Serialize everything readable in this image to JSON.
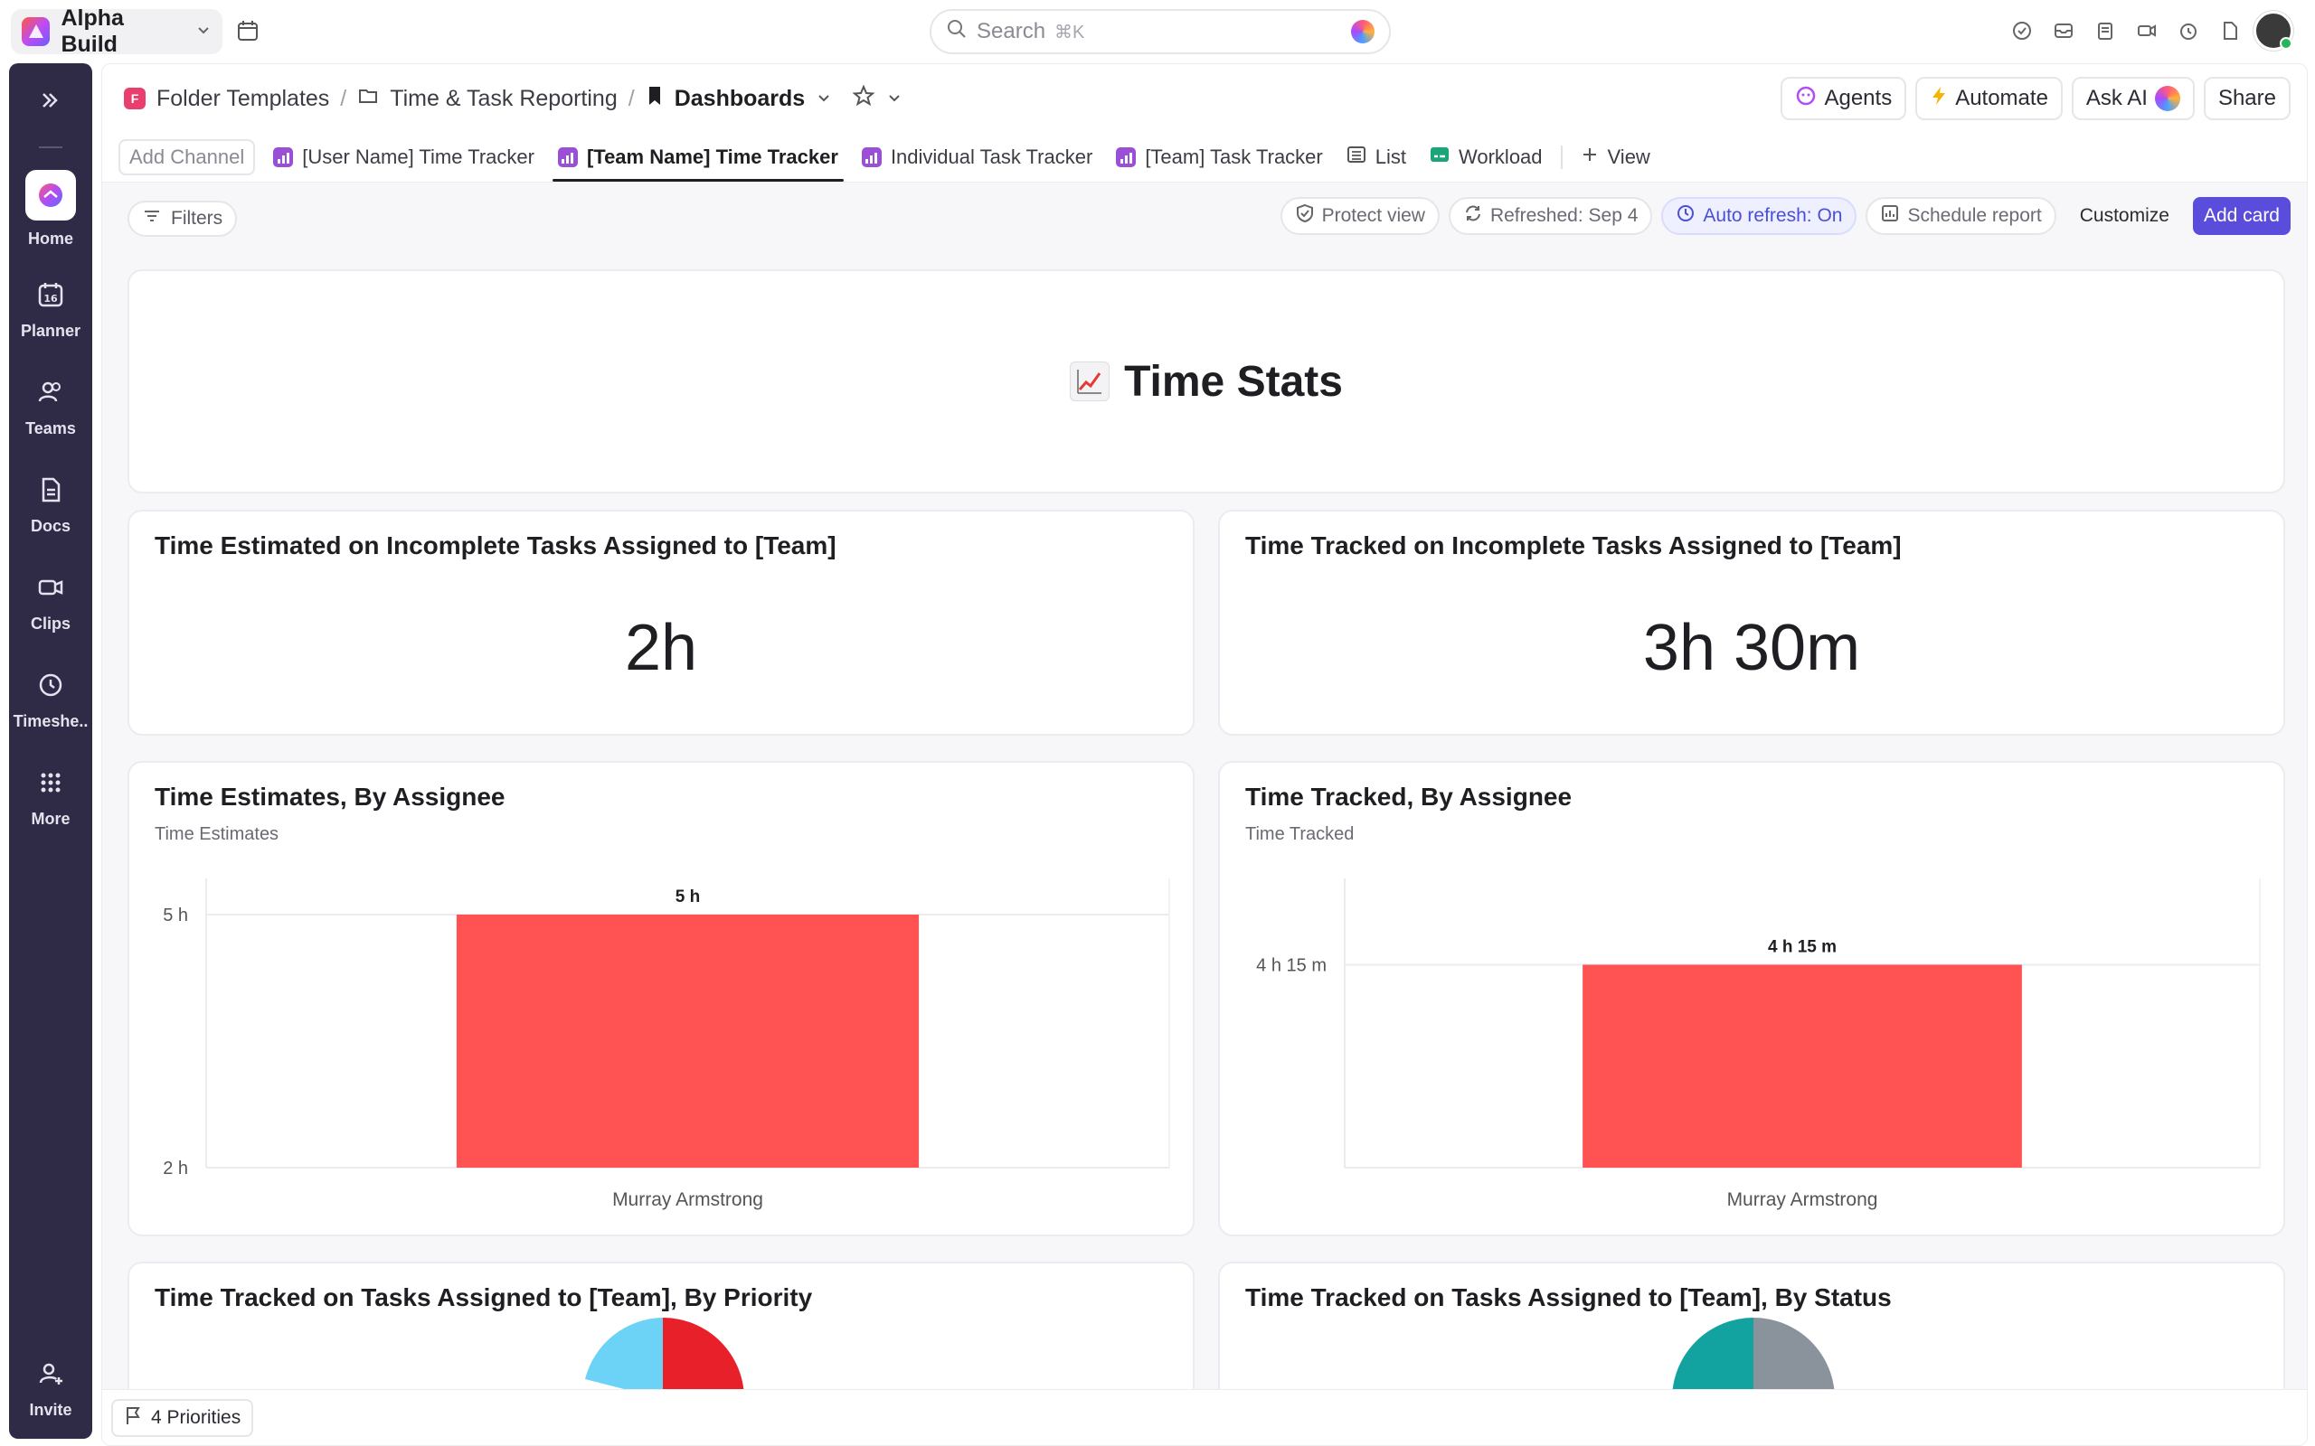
{
  "workspace": {
    "name": "Alpha Build"
  },
  "search": {
    "label": "Search",
    "shortcut": "⌘K"
  },
  "sidebar": {
    "items": [
      {
        "label": "Home",
        "icon": "home-icon"
      },
      {
        "label": "Planner",
        "icon": "calendar-16-icon"
      },
      {
        "label": "Teams",
        "icon": "teams-icon"
      },
      {
        "label": "Docs",
        "icon": "docs-icon"
      },
      {
        "label": "Clips",
        "icon": "video-icon"
      },
      {
        "label": "Timeshe..",
        "icon": "clock-icon"
      },
      {
        "label": "More",
        "icon": "grid-dots-icon"
      }
    ],
    "invite_label": "Invite"
  },
  "breadcrumb": {
    "folder": "Folder Templates",
    "list": "Time & Task Reporting",
    "current": "Dashboards"
  },
  "header_buttons": {
    "agents": "Agents",
    "automate": "Automate",
    "ask_ai": "Ask AI",
    "share": "Share"
  },
  "tabs": {
    "add_channel": "Add Channel",
    "items": [
      {
        "label": "[User Name] Time Tracker"
      },
      {
        "label": "[Team Name] Time Tracker",
        "active": true
      },
      {
        "label": "Individual Task Tracker"
      },
      {
        "label": "[Team] Task Tracker"
      },
      {
        "label": "List"
      },
      {
        "label": "Workload"
      }
    ],
    "add_view": "View"
  },
  "toolbar": {
    "filters": "Filters",
    "protect_view": "Protect view",
    "refreshed": "Refreshed: Sep 4",
    "auto_refresh": "Auto refresh: On",
    "schedule_report": "Schedule report",
    "customize": "Customize",
    "add_card": "Add card"
  },
  "dashboard": {
    "hero_title": "Time Stats",
    "estimated_card": {
      "title": "Time Estimated on Incomplete Tasks Assigned to [Team]",
      "value": "2h"
    },
    "tracked_card": {
      "title": "Time Tracked on Incomplete Tasks Assigned to [Team]",
      "value": "3h 30m"
    },
    "priority_card": {
      "title": "Time Tracked on Tasks Assigned to [Team], By Priority"
    },
    "status_card": {
      "title": "Time Tracked on Tasks Assigned to [Team], By Status"
    }
  },
  "chart_data": [
    {
      "type": "bar",
      "title": "Time Estimates, By Assignee",
      "subtitle": "Time Estimates",
      "categories": [
        "Murray Armstrong"
      ],
      "values": [
        5
      ],
      "data_labels": [
        "5 h"
      ],
      "yticks": [
        "2 h",
        "5 h"
      ],
      "ylim": [
        2,
        5
      ],
      "bar_color": "#ff5252",
      "grid": true
    },
    {
      "type": "bar",
      "title": "Time Tracked, By Assignee",
      "subtitle": "Time Tracked",
      "categories": [
        "Murray Armstrong"
      ],
      "values": [
        4.25
      ],
      "data_labels": [
        "4 h 15 m"
      ],
      "yticks": [
        "4 h 15 m"
      ],
      "bar_color": "#ff5252",
      "grid": true
    }
  ],
  "bottom": {
    "priorities_label": "4 Priorities"
  },
  "colors": {
    "accent": "#5b4ddb",
    "sidebar": "#2f2a45",
    "bar": "#ff5252"
  }
}
